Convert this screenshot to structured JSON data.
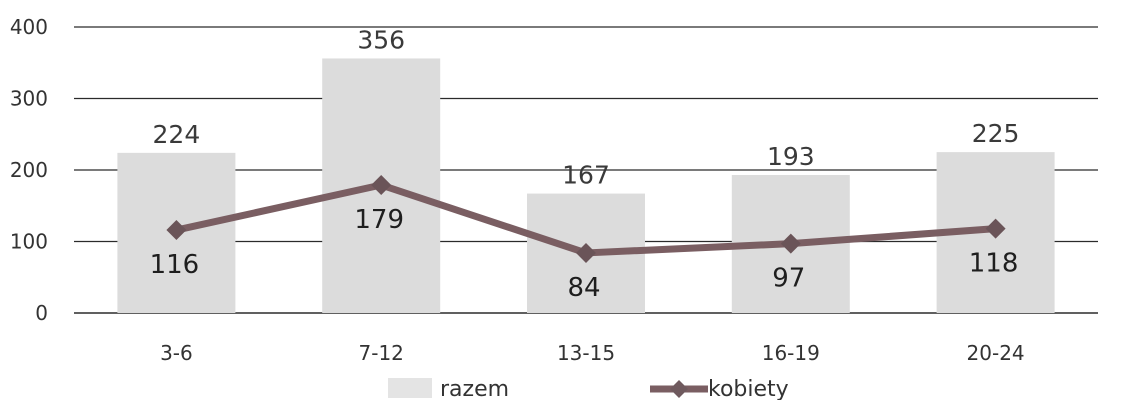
{
  "chart_data": {
    "type": "bar+line",
    "categories": [
      "3-6",
      "7-12",
      "13-15",
      "16-19",
      "20-24"
    ],
    "series": [
      {
        "name": "razem",
        "type": "bar",
        "values": [
          224,
          356,
          167,
          193,
          225
        ],
        "color": "#dcdcdc"
      },
      {
        "name": "kobiety",
        "type": "line",
        "values": [
          116,
          179,
          84,
          97,
          118
        ],
        "color": "#7a5e62"
      }
    ],
    "ylim": [
      0,
      400
    ],
    "yticks": [
      0,
      100,
      200,
      300,
      400
    ],
    "grid": true,
    "legend_position": "bottom"
  }
}
